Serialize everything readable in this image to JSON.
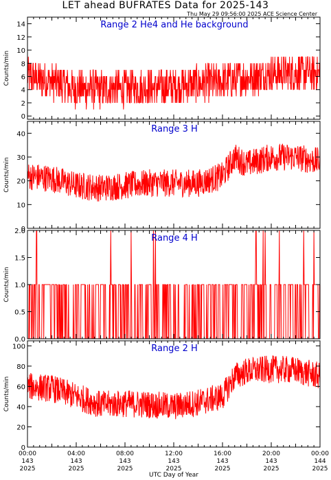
{
  "page": {
    "title": "LET ahead BUFRATES Data for 2025-143",
    "timestamp": "Thu May 29 09:56:00 2025 ACE Science Center",
    "xlabel": "UTC Day of Year"
  },
  "colors": {
    "series": "#ff0000",
    "panel_title": "#0000cc",
    "axes": "#000000",
    "background": "#ffffff"
  },
  "chart_data": [
    {
      "type": "line",
      "title": "Range 2 He4 and He background",
      "ylabel": "Counts/min",
      "ylim": [
        -0.5,
        15
      ],
      "yticks": [
        0,
        2,
        4,
        6,
        8,
        10,
        12,
        14
      ],
      "x": [
        "00:00",
        "02:00",
        "04:00",
        "06:00",
        "08:00",
        "10:00",
        "12:00",
        "14:00",
        "16:00",
        "18:00",
        "20:00",
        "22:00",
        "24:00"
      ],
      "series": [
        {
          "values": [
            6.0,
            5.2,
            4.2,
            4.0,
            4.2,
            4.3,
            4.5,
            4.8,
            5.2,
            5.8,
            6.5,
            6.6,
            6.5
          ]
        }
      ]
    },
    {
      "type": "line",
      "title": "Range 3 H",
      "ylabel": "Counts/min",
      "ylim": [
        0,
        45
      ],
      "yticks": [
        0,
        10,
        20,
        30,
        40
      ],
      "x": [
        "00:00",
        "02:00",
        "04:00",
        "06:00",
        "08:00",
        "10:00",
        "12:00",
        "14:00",
        "16:00",
        "17:00",
        "18:00",
        "20:00",
        "22:00",
        "24:00"
      ],
      "series": [
        {
          "values": [
            22,
            21,
            18,
            17,
            18,
            19,
            19,
            19,
            22,
            30,
            27,
            30,
            30,
            28
          ]
        }
      ]
    },
    {
      "type": "line",
      "title": "Range 4 H",
      "ylabel": "Counts/min",
      "ylim": [
        0,
        2
      ],
      "yticks": [
        0.0,
        0.5,
        1.0,
        1.5,
        2.0
      ],
      "x": [
        "00:00",
        "02:00",
        "04:00",
        "06:00",
        "08:00",
        "10:00",
        "12:00",
        "14:00",
        "16:00",
        "18:00",
        "20:00",
        "22:00",
        "24:00"
      ],
      "series": [
        {
          "values": [
            1.0,
            0.0,
            1.0,
            0.0,
            1.0,
            0.0,
            1.0,
            0.0,
            1.0,
            0.0,
            1.0,
            0.0,
            1.0
          ]
        }
      ],
      "spikes_to_2": [
        "00:45",
        "06:50",
        "08:30",
        "10:20",
        "10:30",
        "18:45",
        "19:20",
        "19:30",
        "20:40",
        "22:40",
        "23:30"
      ]
    },
    {
      "type": "line",
      "title": "Range 2 H",
      "ylabel": "Counts/min",
      "ylim": [
        0,
        105
      ],
      "yticks": [
        0,
        20,
        40,
        60,
        80,
        100
      ],
      "x": [
        "00:00",
        "02:00",
        "04:00",
        "06:00",
        "08:00",
        "10:00",
        "12:00",
        "14:00",
        "16:00",
        "17:00",
        "18:00",
        "20:00",
        "22:00",
        "24:00"
      ],
      "series": [
        {
          "values": [
            60,
            58,
            50,
            42,
            43,
            42,
            40,
            44,
            50,
            70,
            75,
            77,
            76,
            70
          ]
        }
      ]
    }
  ],
  "x_axis": {
    "tick_labels": [
      {
        "time": "00:00",
        "doy": "143",
        "year": "2025"
      },
      {
        "time": "04:00",
        "doy": "143",
        "year": "2025"
      },
      {
        "time": "08:00",
        "doy": "143",
        "year": "2025"
      },
      {
        "time": "12:00",
        "doy": "143",
        "year": "2025"
      },
      {
        "time": "16:00",
        "doy": "143",
        "year": "2025"
      },
      {
        "time": "20:00",
        "doy": "143",
        "year": "2025"
      },
      {
        "time": "00:00",
        "doy": "144",
        "year": "2025"
      }
    ]
  }
}
